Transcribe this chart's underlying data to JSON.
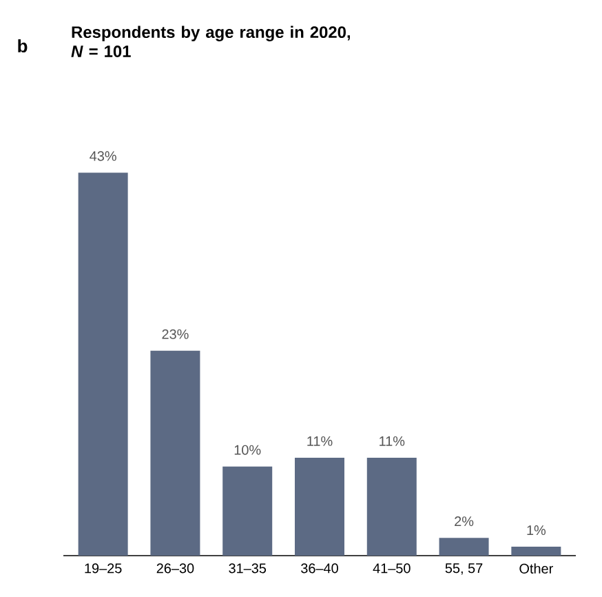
{
  "chart_data": {
    "type": "bar",
    "title": "Respondents by age range in 2020, *N* = 101",
    "categories": [
      "19–25",
      "26–30",
      "31–35",
      "36–40",
      "41–50",
      "55, 57",
      "Other"
    ],
    "values": [
      43,
      23,
      10,
      11,
      11,
      2,
      1
    ],
    "value_labels": [
      "43%",
      "23%",
      "10%",
      "11%",
      "11%",
      "2%",
      "1%"
    ],
    "color": "#5c6a84",
    "annotations": [
      "b"
    ]
  }
}
